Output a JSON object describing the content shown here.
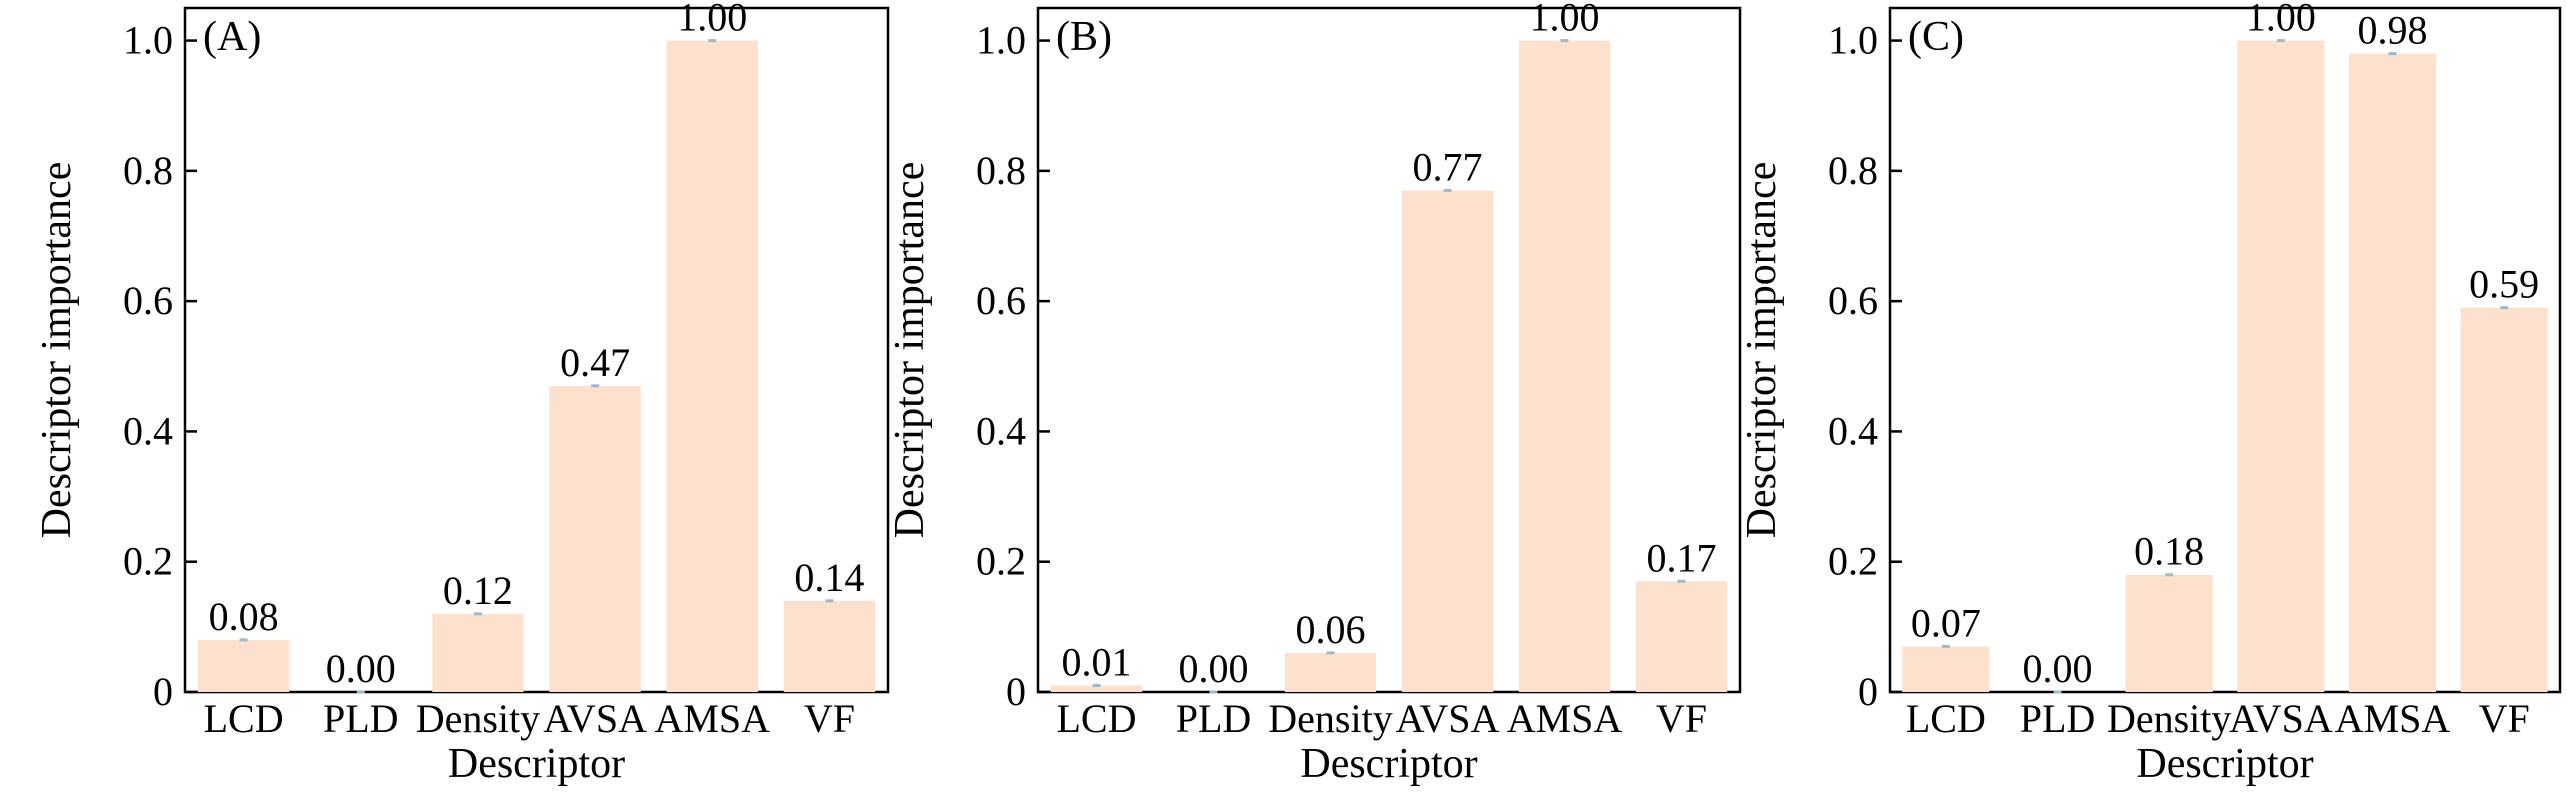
{
  "figure": {
    "colors": {
      "bar": "#fde1cc",
      "axis": "#000000",
      "marker": "#9fb9c9"
    }
  },
  "chart_data": [
    {
      "type": "bar",
      "panel_label": "(A)",
      "categories": [
        "LCD",
        "PLD",
        "Density",
        "AVSA",
        "AMSA",
        "VF"
      ],
      "values": [
        0.08,
        0.0,
        0.12,
        0.47,
        1.0,
        0.14
      ],
      "value_labels": [
        "0.08",
        "0.00",
        "0.12",
        "0.47",
        "1.00",
        "0.14"
      ],
      "xlabel": "Descriptor",
      "ylabel": "Descriptor importance",
      "ylim": [
        0,
        1.05
      ],
      "yticks": [
        0,
        0.2,
        0.4,
        0.6,
        0.8,
        1.0
      ],
      "ytick_labels": [
        "0",
        "0.2",
        "0.4",
        "0.6",
        "0.8",
        "1.0"
      ],
      "grid": false,
      "legend": "none"
    },
    {
      "type": "bar",
      "panel_label": "(B)",
      "categories": [
        "LCD",
        "PLD",
        "Density",
        "AVSA",
        "AMSA",
        "VF"
      ],
      "values": [
        0.01,
        0.0,
        0.06,
        0.77,
        1.0,
        0.17
      ],
      "value_labels": [
        "0.01",
        "0.00",
        "0.06",
        "0.77",
        "1.00",
        "0.17"
      ],
      "xlabel": "Descriptor",
      "ylabel": "Descriptor importance",
      "ylim": [
        0,
        1.05
      ],
      "yticks": [
        0,
        0.2,
        0.4,
        0.6,
        0.8,
        1.0
      ],
      "ytick_labels": [
        "0",
        "0.2",
        "0.4",
        "0.6",
        "0.8",
        "1.0"
      ],
      "grid": false,
      "legend": "none"
    },
    {
      "type": "bar",
      "panel_label": "(C)",
      "categories": [
        "LCD",
        "PLD",
        "Density",
        "AVSA",
        "AMSA",
        "VF"
      ],
      "values": [
        0.07,
        0.0,
        0.18,
        1.0,
        0.98,
        0.59
      ],
      "value_labels": [
        "0.07",
        "0.00",
        "0.18",
        "1.00",
        "0.98",
        "0.59"
      ],
      "xlabel": "Descriptor",
      "ylabel": "Descriptor importance",
      "ylim": [
        0,
        1.05
      ],
      "yticks": [
        0,
        0.2,
        0.4,
        0.6,
        0.8,
        1.0
      ],
      "ytick_labels": [
        "0",
        "0.2",
        "0.4",
        "0.6",
        "0.8",
        "1.0"
      ],
      "grid": false,
      "legend": "none"
    }
  ]
}
